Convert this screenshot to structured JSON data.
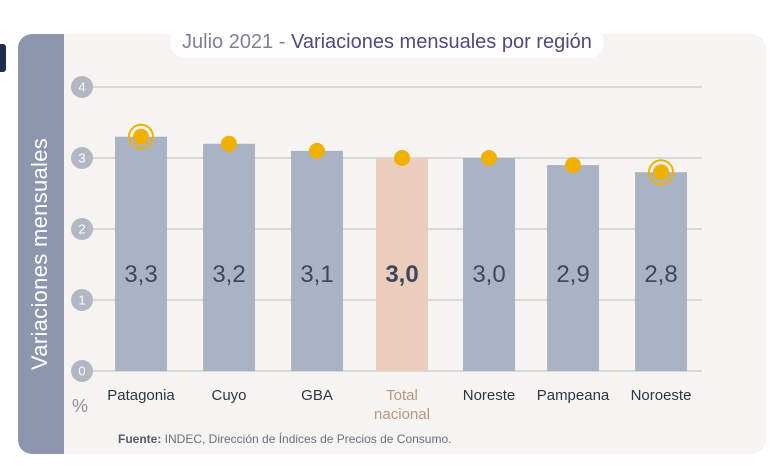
{
  "chart_data": {
    "type": "bar",
    "title_prefix": "Julio 2021 -",
    "title": "Variaciones mensuales por región",
    "ylabel": "Variaciones  mensuales",
    "unit_label": "%",
    "ylim": [
      0,
      4
    ],
    "yticks": [
      "0",
      "1",
      "2",
      "3",
      "4"
    ],
    "grid": true,
    "categories": [
      {
        "label": [
          "Patagonia"
        ],
        "value": 3.3,
        "value_label": "3,3",
        "highlight": false,
        "marker": "ring"
      },
      {
        "label": [
          "Cuyo"
        ],
        "value": 3.2,
        "value_label": "3,2",
        "highlight": false,
        "marker": "dot"
      },
      {
        "label": [
          "GBA"
        ],
        "value": 3.1,
        "value_label": "3,1",
        "highlight": false,
        "marker": "dot"
      },
      {
        "label": [
          "Total",
          "nacional"
        ],
        "value": 3.0,
        "value_label": "3,0",
        "highlight": true,
        "marker": "dot"
      },
      {
        "label": [
          "Noreste"
        ],
        "value": 3.0,
        "value_label": "3,0",
        "highlight": false,
        "marker": "dot"
      },
      {
        "label": [
          "Pampeana"
        ],
        "value": 2.9,
        "value_label": "2,9",
        "highlight": false,
        "marker": "dot"
      },
      {
        "label": [
          "Noroeste"
        ],
        "value": 2.8,
        "value_label": "2,8",
        "highlight": false,
        "marker": "ring"
      }
    ],
    "colors": {
      "bar": "#a9b3c4",
      "bar_highlight": "#ebcdbb",
      "marker": "#f0b000",
      "grid": "#b9bcc9",
      "tick_circle": "#b3b6c3",
      "value_text": "#3e4762",
      "category_text": "#2f3546",
      "category_highlight_text": "#b8977f"
    }
  },
  "source": {
    "label": "Fuente:",
    "text": " INDEC, Dirección de Índices de Precios de Consumo."
  }
}
